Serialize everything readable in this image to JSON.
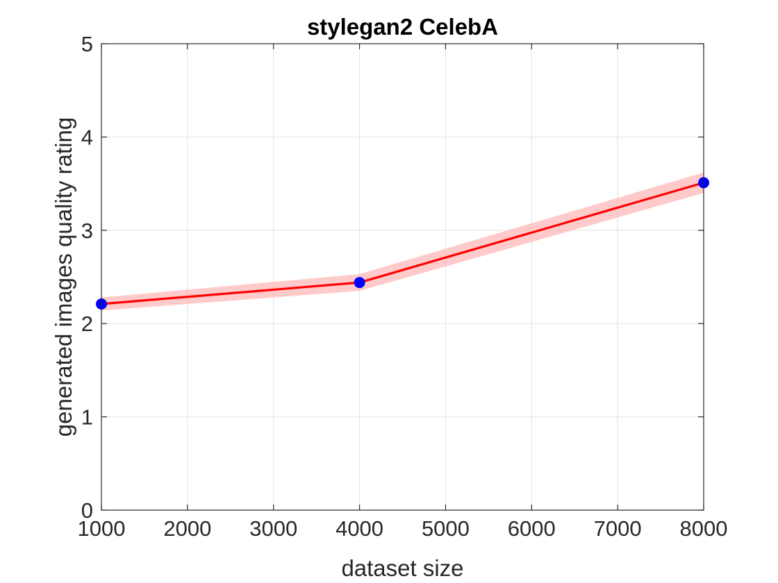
{
  "chart_data": {
    "type": "line",
    "title": "stylegan2 CelebA",
    "xlabel": "dataset size",
    "ylabel": "generated images quality rating",
    "xlim": [
      1000,
      8000
    ],
    "ylim": [
      0,
      5
    ],
    "xticks": [
      1000,
      2000,
      3000,
      4000,
      5000,
      6000,
      7000,
      8000
    ],
    "yticks": [
      0,
      1,
      2,
      3,
      4,
      5
    ],
    "grid": true,
    "legend": "none",
    "series": [
      {
        "x": [
          1000,
          4000,
          8000
        ],
        "y": [
          2.21,
          2.44,
          3.51
        ],
        "lower": [
          2.14,
          2.35,
          3.4
        ],
        "upper": [
          2.28,
          2.53,
          3.62
        ],
        "line_color": "#ff0000",
        "band_color": "#ffb3b3",
        "marker_color": "#0000ff"
      }
    ]
  }
}
